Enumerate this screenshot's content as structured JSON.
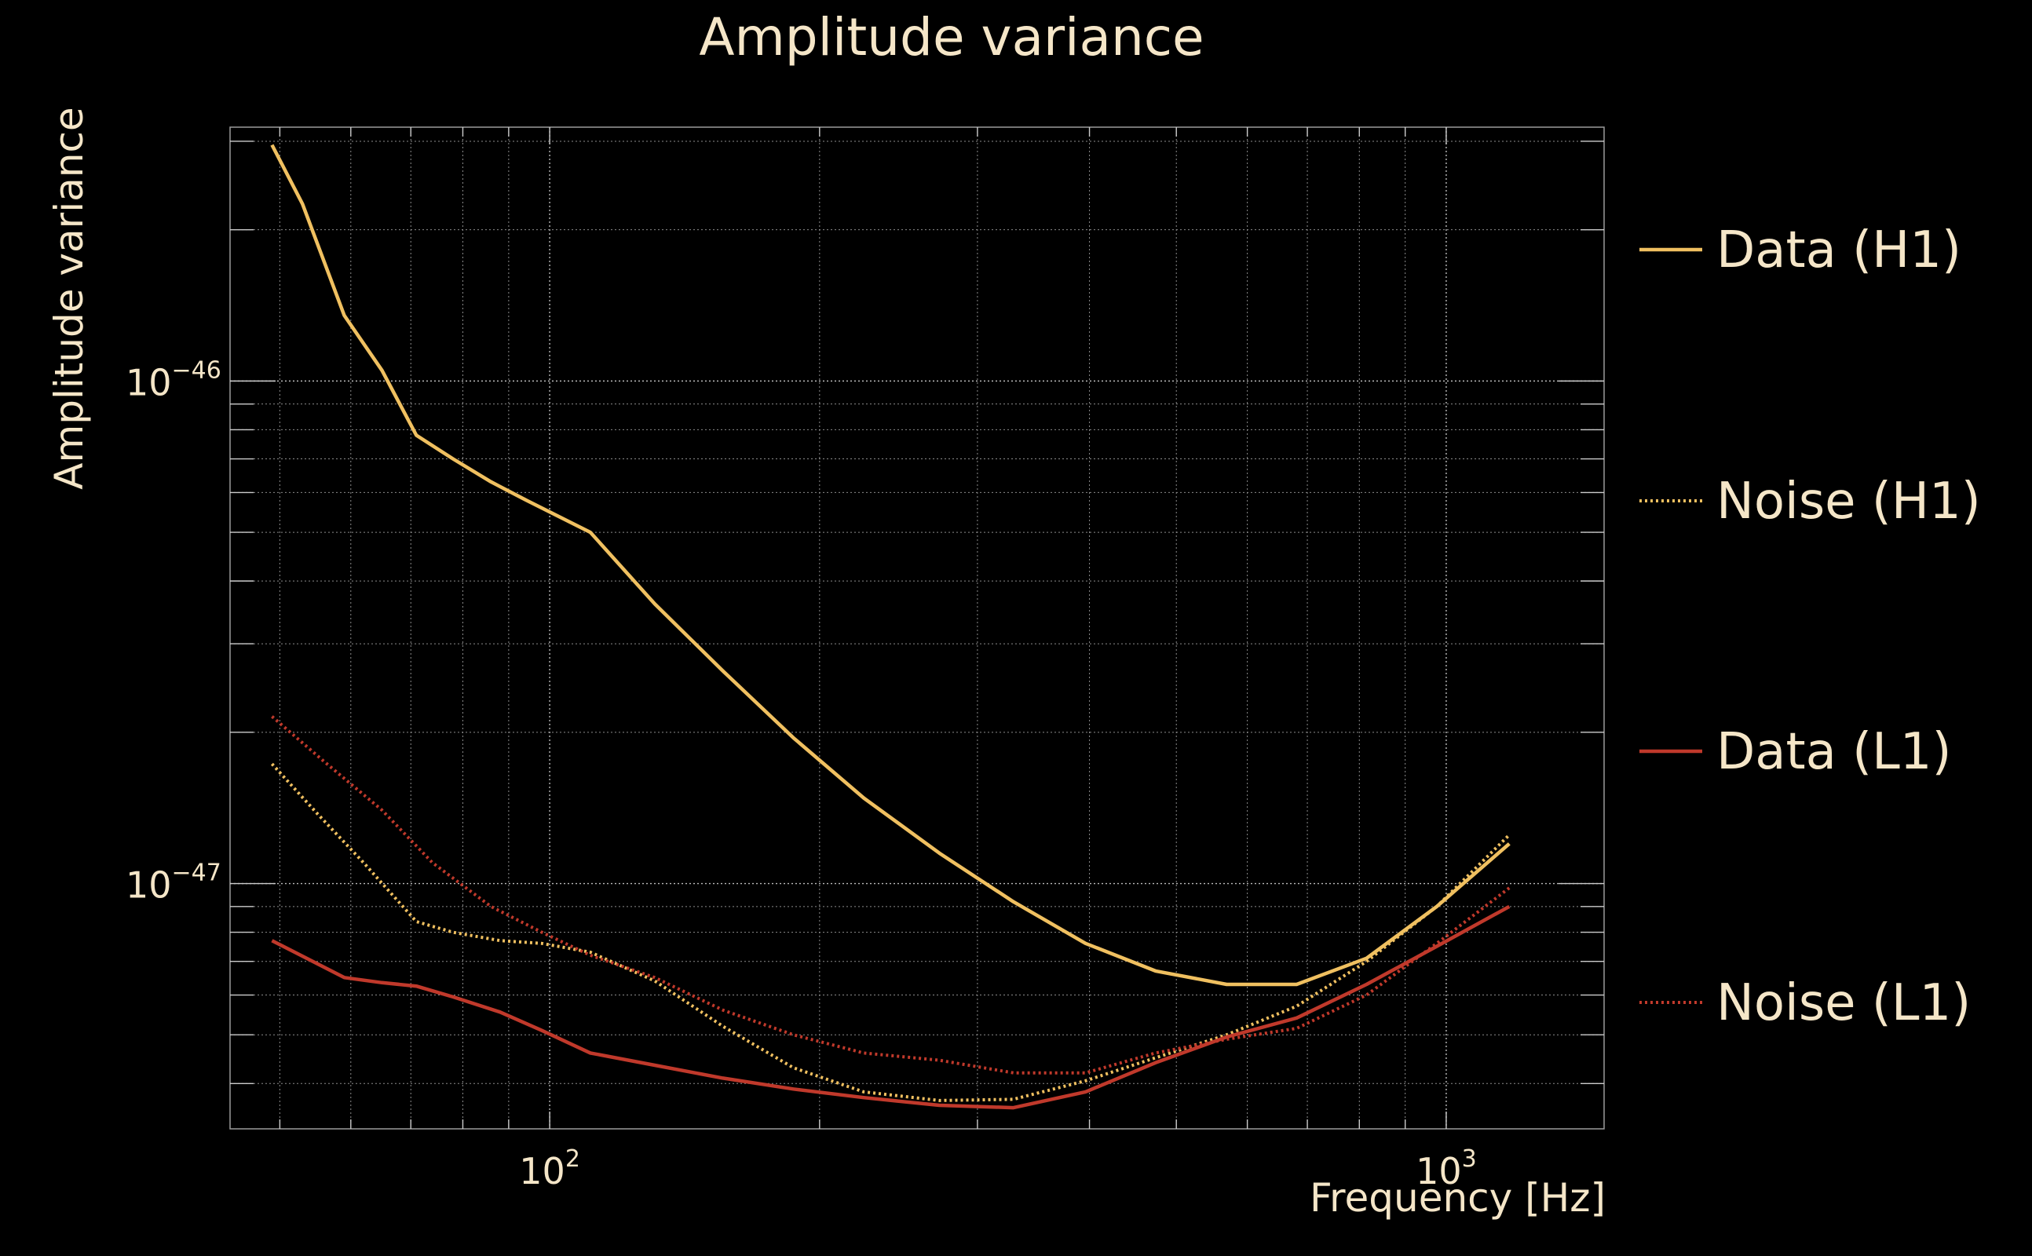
{
  "chart_data": {
    "type": "line",
    "title": "Amplitude variance",
    "xlabel": "Frequency [Hz]",
    "ylabel": "Amplitude variance",
    "x_scale": "log",
    "y_scale": "log",
    "xlim": [
      44,
      1500
    ],
    "ylim": [
      3.25e-48,
      3.2e-46
    ],
    "grid": true,
    "legend_position": "right",
    "x_ticks": [
      {
        "value": 100,
        "base": "10",
        "exp": "2"
      },
      {
        "value": 1000,
        "base": "10",
        "exp": "3"
      }
    ],
    "y_ticks": [
      {
        "value": 1e-47,
        "base": "10",
        "exp": "−47"
      },
      {
        "value": 1e-46,
        "base": "10",
        "exp": "−46"
      }
    ],
    "series": [
      {
        "name": "Data (H1)",
        "color": "#f0c060",
        "style": "solid",
        "x": [
          49,
          53,
          59,
          65,
          71,
          78,
          86,
          94,
          111,
          131,
          156,
          187,
          224,
          272,
          329,
          396,
          474,
          569,
          681,
          815,
          976,
          1176
        ],
        "y": [
          2.95e-46,
          2.25e-46,
          1.35e-46,
          1.05e-46,
          7.8e-47,
          7e-47,
          6.3e-47,
          5.8e-47,
          5e-47,
          3.6e-47,
          2.65e-47,
          1.95e-47,
          1.48e-47,
          1.15e-47,
          9.2e-48,
          7.6e-48,
          6.7e-48,
          6.3e-48,
          6.3e-48,
          7.1e-48,
          9e-48,
          1.2e-47
        ]
      },
      {
        "name": "Noise (H1)",
        "color": "#f0c060",
        "style": "dotted",
        "x": [
          49,
          55,
          62,
          71,
          78,
          88,
          98,
          111,
          131,
          156,
          187,
          224,
          272,
          329,
          396,
          474,
          569,
          681,
          815,
          976,
          1176
        ],
        "y": [
          1.73e-47,
          1.38e-47,
          1.1e-47,
          8.4e-48,
          8e-48,
          7.7e-48,
          7.6e-48,
          7.3e-48,
          6.4e-48,
          5.2e-48,
          4.3e-48,
          3.85e-48,
          3.7e-48,
          3.72e-48,
          4.05e-48,
          4.5e-48,
          5e-48,
          5.7e-48,
          7e-48,
          9e-48,
          1.25e-47
        ]
      },
      {
        "name": "Data (L1)",
        "color": "#c0392b",
        "style": "solid",
        "x": [
          49,
          59,
          65,
          71,
          78,
          88,
          98,
          111,
          131,
          156,
          187,
          224,
          272,
          329,
          396,
          474,
          569,
          681,
          815,
          976,
          1176
        ],
        "y": [
          7.7e-48,
          6.5e-48,
          6.35e-48,
          6.25e-48,
          5.95e-48,
          5.55e-48,
          5.1e-48,
          4.6e-48,
          4.35e-48,
          4.1e-48,
          3.9e-48,
          3.75e-48,
          3.62e-48,
          3.58e-48,
          3.85e-48,
          4.4e-48,
          4.95e-48,
          5.4e-48,
          6.3e-48,
          7.5e-48,
          9e-48
        ]
      },
      {
        "name": "Noise (L1)",
        "color": "#c0392b",
        "style": "dotted",
        "x": [
          49,
          56,
          65,
          74,
          86,
          98,
          111,
          131,
          156,
          187,
          224,
          272,
          329,
          396,
          474,
          569,
          681,
          815,
          976,
          1176
        ],
        "y": [
          2.15e-47,
          1.75e-47,
          1.4e-47,
          1.1e-47,
          9e-48,
          8e-48,
          7.2e-48,
          6.5e-48,
          5.6e-48,
          5e-48,
          4.6e-48,
          4.45e-48,
          4.2e-48,
          4.2e-48,
          4.6e-48,
          4.9e-48,
          5.15e-48,
          6e-48,
          7.6e-48,
          9.8e-48
        ]
      }
    ]
  }
}
